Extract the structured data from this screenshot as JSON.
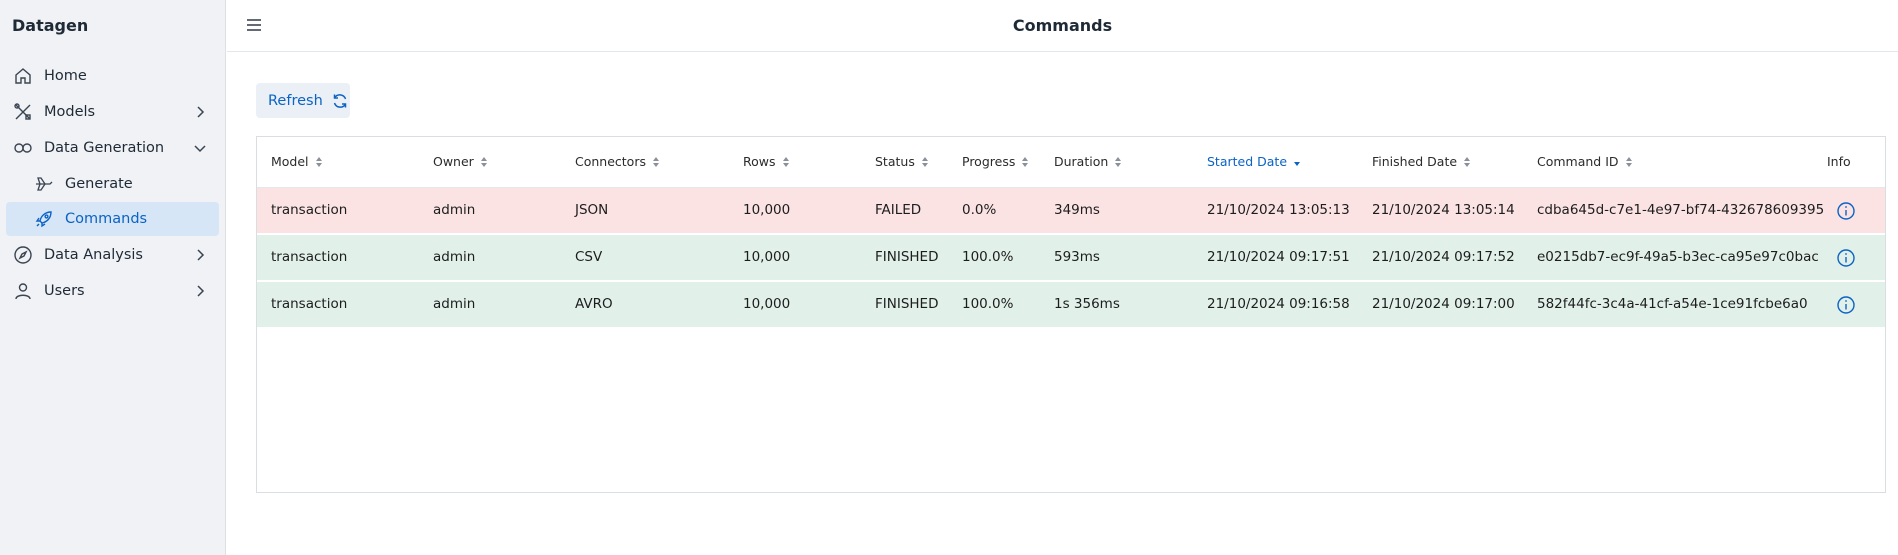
{
  "sidebar": {
    "brand": "Datagen",
    "items": [
      {
        "label": "Home",
        "icon": "home-icon"
      },
      {
        "label": "Models",
        "icon": "tools-icon"
      },
      {
        "label": "Data Generation",
        "icon": "infinity-icon"
      },
      {
        "label": "Generate",
        "icon": "plane-icon"
      },
      {
        "label": "Commands",
        "icon": "rocket-icon"
      },
      {
        "label": "Data Analysis",
        "icon": "compass-icon"
      },
      {
        "label": "Users",
        "icon": "user-icon"
      }
    ]
  },
  "header": {
    "title": "Commands"
  },
  "toolbar": {
    "refresh_label": "Refresh"
  },
  "table": {
    "columns": [
      "Model",
      "Owner",
      "Connectors",
      "Rows",
      "Status",
      "Progress",
      "Duration",
      "Started Date",
      "Finished Date",
      "Command ID",
      "Info"
    ],
    "sorted_column": "Started Date",
    "rows": [
      {
        "model": "transaction",
        "owner": "admin",
        "connectors": "JSON",
        "rows": "10,000",
        "status": "FAILED",
        "progress": "0.0%",
        "duration": "349ms",
        "started": "21/10/2024 13:05:13",
        "finished": "21/10/2024 13:05:14",
        "command_id": "cdba645d-c7e1-4e97-bf74-432678609395"
      },
      {
        "model": "transaction",
        "owner": "admin",
        "connectors": "CSV",
        "rows": "10,000",
        "status": "FINISHED",
        "progress": "100.0%",
        "duration": "593ms",
        "started": "21/10/2024 09:17:51",
        "finished": "21/10/2024 09:17:52",
        "command_id": "e0215db7-ec9f-49a5-b3ec-ca95e97c0bac"
      },
      {
        "model": "transaction",
        "owner": "admin",
        "connectors": "AVRO",
        "rows": "10,000",
        "status": "FINISHED",
        "progress": "100.0%",
        "duration": "1s 356ms",
        "started": "21/10/2024 09:16:58",
        "finished": "21/10/2024 09:17:00",
        "command_id": "582f44fc-3c4a-41cf-a54e-1ce91fcbe6a0"
      }
    ]
  },
  "colors": {
    "accent": "#0b63c4",
    "failed_row": "#fbe3e4",
    "finished_row": "#e2f0ea",
    "active_nav": "#d6e6f7"
  }
}
